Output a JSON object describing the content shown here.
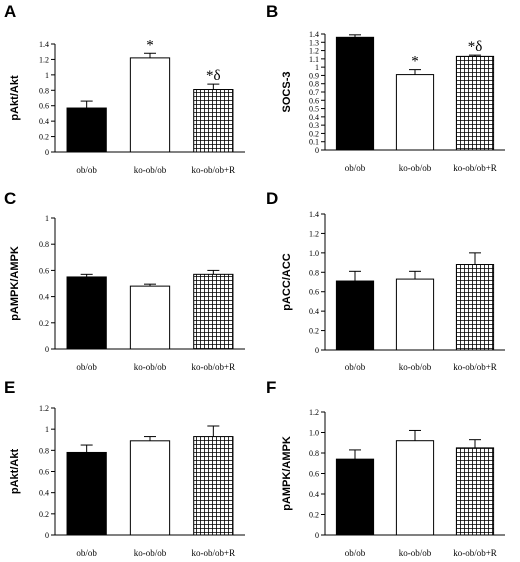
{
  "chart_data": [
    {
      "panel": "A",
      "type": "bar",
      "ylabel": "pAkt/Akt",
      "ylim": [
        0,
        1.4
      ],
      "yticks": [
        "0",
        "0.2",
        "0.4",
        "0.6",
        "0.8",
        "1",
        "1.2",
        "1.4"
      ],
      "categories": [
        "ob/ob",
        "ko-ob/ob",
        "ko-ob/ob+R"
      ],
      "values": [
        0.57,
        1.22,
        0.81
      ],
      "errors": [
        0.09,
        0.06,
        0.07
      ],
      "annotations": [
        "",
        "*",
        "*δ"
      ]
    },
    {
      "panel": "B",
      "type": "bar",
      "ylabel": "SOCS-3",
      "ylim": [
        0,
        1.4
      ],
      "yticks": [
        "0",
        "0.1",
        "0.2",
        "0.3",
        "0.4",
        "0.5",
        "0.6",
        "0.7",
        "0.8",
        "0.9",
        "1",
        "1.1",
        "1.2",
        "1.3",
        "1.4"
      ],
      "categories": [
        "ob/ob",
        "ko-ob/ob",
        "ko-ob/ob+R"
      ],
      "values": [
        1.36,
        0.91,
        1.13
      ],
      "errors": [
        0.03,
        0.06,
        0.015
      ],
      "annotations": [
        "",
        "*",
        "*δ"
      ]
    },
    {
      "panel": "C",
      "type": "bar",
      "ylabel": "pAMPK/AMPK",
      "ylim": [
        0,
        1
      ],
      "yticks": [
        "0",
        "0.2",
        "0.4",
        "0.6",
        "0.8",
        "1"
      ],
      "categories": [
        "ob/ob",
        "ko-ob/ob",
        "ko-ob/ob+R"
      ],
      "values": [
        0.55,
        0.48,
        0.57
      ],
      "errors": [
        0.02,
        0.015,
        0.03
      ],
      "annotations": [
        "",
        "",
        ""
      ]
    },
    {
      "panel": "D",
      "type": "bar",
      "ylabel": "pACC/ACC",
      "ylim": [
        0,
        1.4
      ],
      "yticks": [
        "0",
        "0.2",
        "0.4",
        "0.6",
        "0.8",
        "1.0",
        "1.2",
        "1.4"
      ],
      "categories": [
        "ob/ob",
        "ko-ob/ob",
        "ko-ob/ob+R"
      ],
      "values": [
        0.71,
        0.73,
        0.88
      ],
      "errors": [
        0.1,
        0.08,
        0.12
      ],
      "annotations": [
        "",
        "",
        ""
      ]
    },
    {
      "panel": "E",
      "type": "bar",
      "ylabel": "pAkt/Akt",
      "ylim": [
        0,
        1.2
      ],
      "yticks": [
        "0",
        "0.2",
        "0.4",
        "0.6",
        "0.8",
        "1",
        "1.2"
      ],
      "categories": [
        "ob/ob",
        "ko-ob/ob",
        "ko-ob/ob+R"
      ],
      "values": [
        0.78,
        0.89,
        0.93
      ],
      "errors": [
        0.07,
        0.04,
        0.1
      ],
      "annotations": [
        "",
        "",
        ""
      ]
    },
    {
      "panel": "F",
      "type": "bar",
      "ylabel": "pAMPK/AMPK",
      "ylim": [
        0,
        1.2
      ],
      "yticks": [
        "0",
        "0.2",
        "0.4",
        "0.6",
        "0.8",
        "1.0",
        "1.2"
      ],
      "categories": [
        "ob/ob",
        "ko-ob/ob",
        "ko-ob/ob+R"
      ],
      "values": [
        0.74,
        0.92,
        0.85
      ],
      "errors": [
        0.09,
        0.1,
        0.08
      ],
      "annotations": [
        "",
        "",
        ""
      ]
    }
  ],
  "bar_fills": [
    "solid-black",
    "white",
    "grid-hatch"
  ],
  "colors": {
    "ink": "#000000",
    "background": "#ffffff"
  }
}
